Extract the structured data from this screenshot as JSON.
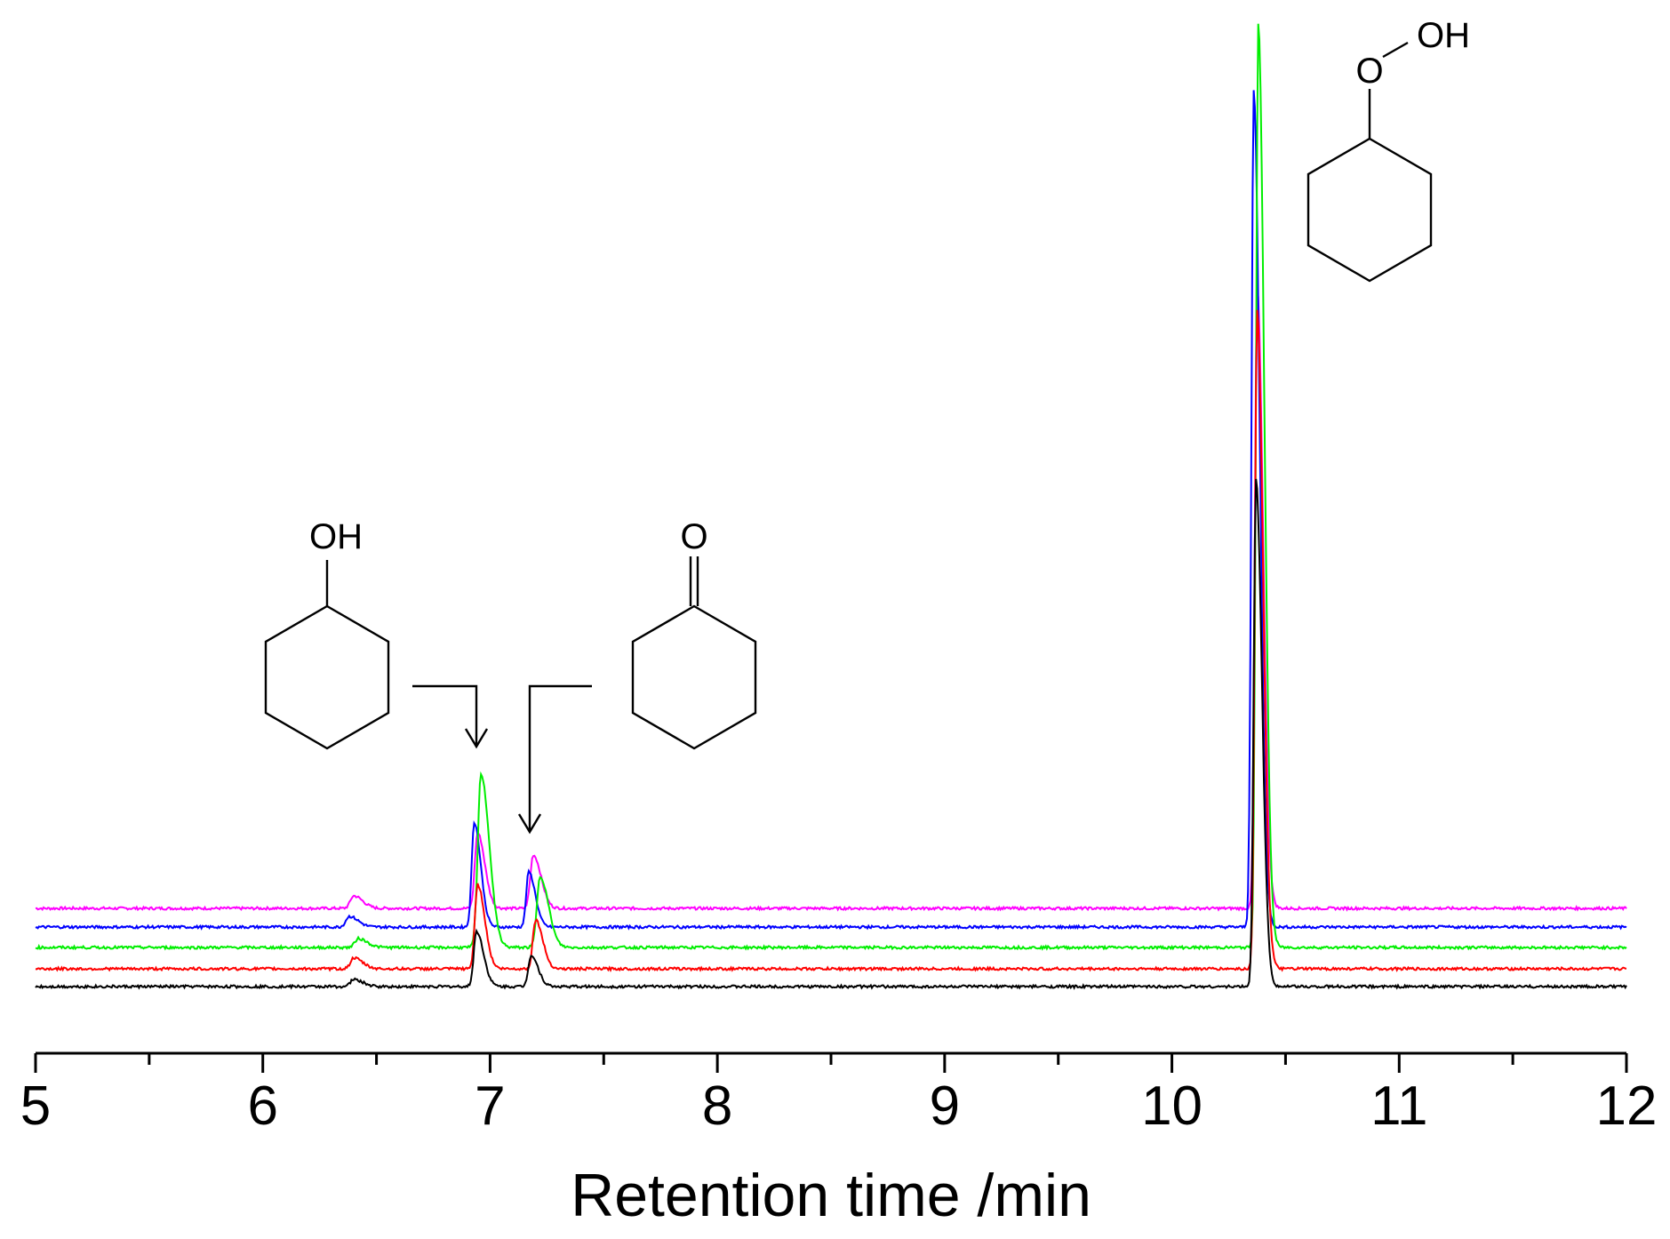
{
  "chart_data": {
    "type": "line",
    "title": "",
    "xlabel": "Retention time /min",
    "ylabel": "",
    "xlim": [
      5,
      12
    ],
    "x_ticks": [
      "5",
      "6",
      "7",
      "8",
      "9",
      "10",
      "11",
      "12"
    ],
    "x_minor_step": 0.5,
    "y_axis_visible": false,
    "grid": false,
    "legend": "none",
    "series": [
      {
        "color": "#000000",
        "offset": 0,
        "peaks": [
          {
            "x": 6.4,
            "h": 8,
            "w": 0.015
          },
          {
            "x": 6.94,
            "h": 62,
            "w": 0.012
          },
          {
            "x": 7.18,
            "h": 35,
            "w": 0.012
          },
          {
            "x": 10.37,
            "h": 570,
            "w": 0.01
          }
        ]
      },
      {
        "color": "#ff0000",
        "offset": 20,
        "peaks": [
          {
            "x": 6.4,
            "h": 12,
            "w": 0.015
          },
          {
            "x": 6.945,
            "h": 95,
            "w": 0.012
          },
          {
            "x": 7.2,
            "h": 55,
            "w": 0.012
          },
          {
            "x": 10.375,
            "h": 740,
            "w": 0.01
          }
        ]
      },
      {
        "color": "#00ee00",
        "offset": 44,
        "peaks": [
          {
            "x": 6.42,
            "h": 10,
            "w": 0.015
          },
          {
            "x": 6.96,
            "h": 195,
            "w": 0.014
          },
          {
            "x": 7.22,
            "h": 80,
            "w": 0.014
          },
          {
            "x": 10.38,
            "h": 1040,
            "w": 0.01
          }
        ]
      },
      {
        "color": "#0000ff",
        "offset": 67,
        "peaks": [
          {
            "x": 6.38,
            "h": 12,
            "w": 0.015
          },
          {
            "x": 6.93,
            "h": 118,
            "w": 0.011
          },
          {
            "x": 7.17,
            "h": 62,
            "w": 0.011
          },
          {
            "x": 10.36,
            "h": 940,
            "w": 0.01
          }
        ]
      },
      {
        "color": "#ff00ff",
        "offset": 88,
        "peaks": [
          {
            "x": 6.4,
            "h": 14,
            "w": 0.015
          },
          {
            "x": 6.945,
            "h": 85,
            "w": 0.012
          },
          {
            "x": 7.19,
            "h": 60,
            "w": 0.013
          },
          {
            "x": 10.375,
            "h": 700,
            "w": 0.01
          }
        ]
      }
    ],
    "annotations": [
      {
        "label": "cyclohexanol",
        "atom_label": "OH",
        "arrow_to_x": 6.94
      },
      {
        "label": "cyclohexanone",
        "atom_label": "O",
        "arrow_to_x": 7.18
      },
      {
        "label": "cyclohexyl hydroperoxide",
        "atom_labels": [
          "O",
          "OH"
        ],
        "peak_x": 10.37
      }
    ]
  }
}
